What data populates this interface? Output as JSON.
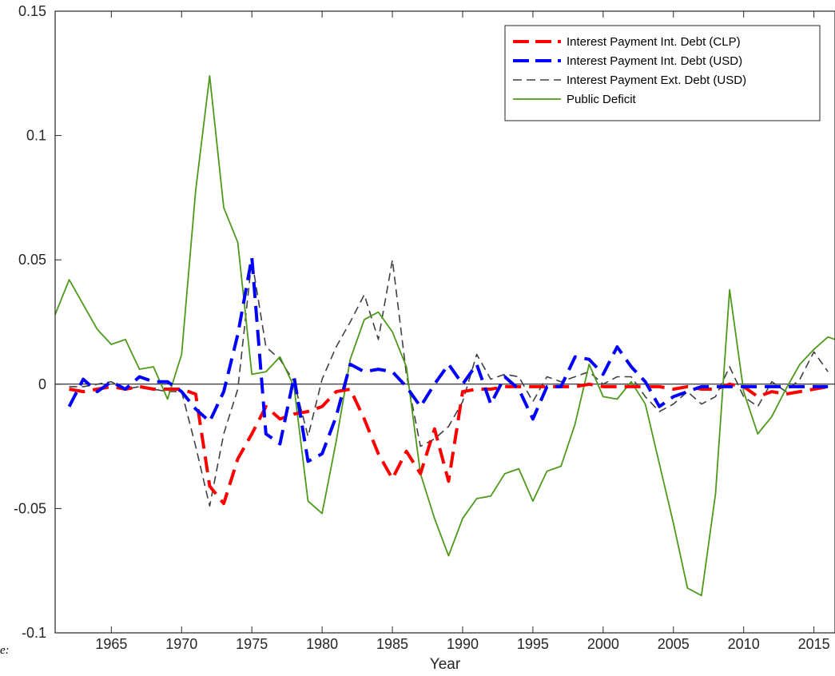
{
  "chart_data": {
    "type": "line",
    "xlabel": "Year",
    "ylabel": "",
    "title": "",
    "xlim": [
      1961,
      2016.5
    ],
    "ylim": [
      -0.1,
      0.15
    ],
    "xticks": [
      1965,
      1970,
      1975,
      1980,
      1985,
      1990,
      1995,
      2000,
      2005,
      2010,
      2015
    ],
    "yticks": [
      -0.1,
      -0.05,
      0,
      0.05,
      0.1,
      0.15
    ],
    "ytick_labels": [
      "-0.1",
      "-0.05",
      "0",
      "0.05",
      "0.1",
      "0.15"
    ],
    "grid": false,
    "zero_line": true,
    "legend_position": "top-right",
    "series": [
      {
        "name": "Interest Payment Int. Debt  (CLP)",
        "color": "#ff0000",
        "style": "dashed-thick",
        "x": [
          1962,
          1963,
          1964,
          1965,
          1966,
          1967,
          1968,
          1969,
          1970,
          1971,
          1972,
          1973,
          1974,
          1975,
          1976,
          1977,
          1978,
          1979,
          1980,
          1981,
          1982,
          1983,
          1984,
          1985,
          1986,
          1987,
          1988,
          1989,
          1990,
          1991,
          1992,
          1993,
          1994,
          1995,
          1996,
          1997,
          1998,
          1999,
          2000,
          2001,
          2002,
          2003,
          2004,
          2005,
          2006,
          2007,
          2008,
          2009,
          2010,
          2011,
          2012,
          2013,
          2014,
          2015,
          2016
        ],
        "y": [
          -0.002,
          -0.003,
          -0.002,
          -0.001,
          -0.002,
          -0.001,
          -0.002,
          -0.002,
          -0.002,
          -0.004,
          -0.041,
          -0.048,
          -0.03,
          -0.02,
          -0.009,
          -0.014,
          -0.012,
          -0.011,
          -0.009,
          -0.003,
          -0.002,
          -0.014,
          -0.028,
          -0.038,
          -0.027,
          -0.036,
          -0.018,
          -0.039,
          -0.003,
          -0.002,
          -0.002,
          -0.001,
          -0.001,
          -0.001,
          -0.001,
          -0.001,
          -0.001,
          0.0,
          -0.001,
          -0.001,
          -0.001,
          -0.001,
          -0.001,
          -0.002,
          -0.001,
          -0.002,
          -0.002,
          0.0,
          -0.001,
          -0.005,
          -0.003,
          -0.004,
          -0.003,
          -0.002,
          -0.001
        ]
      },
      {
        "name": "Interest Payment Int. Debt  (USD)",
        "color": "#0000ff",
        "style": "dashed-thick",
        "x": [
          1962,
          1963,
          1964,
          1965,
          1966,
          1967,
          1968,
          1969,
          1970,
          1971,
          1972,
          1973,
          1974,
          1975,
          1976,
          1977,
          1978,
          1979,
          1980,
          1981,
          1982,
          1983,
          1984,
          1985,
          1986,
          1987,
          1988,
          1989,
          1990,
          1991,
          1992,
          1993,
          1994,
          1995,
          1996,
          1997,
          1998,
          1999,
          2000,
          2001,
          2002,
          2003,
          2004,
          2005,
          2006,
          2007,
          2008,
          2009,
          2010,
          2011,
          2012,
          2013,
          2014,
          2015,
          2016
        ],
        "y": [
          -0.009,
          0.002,
          -0.003,
          0.001,
          -0.002,
          0.003,
          0.001,
          0.001,
          -0.003,
          -0.01,
          -0.015,
          -0.003,
          0.02,
          0.051,
          -0.02,
          -0.024,
          0.003,
          -0.031,
          -0.028,
          -0.013,
          0.008,
          0.005,
          0.006,
          0.005,
          -0.001,
          -0.009,
          0.0,
          0.008,
          0.0,
          0.008,
          -0.008,
          0.003,
          -0.002,
          -0.014,
          -0.001,
          -0.001,
          0.011,
          0.01,
          0.004,
          0.015,
          0.007,
          0.001,
          -0.009,
          -0.005,
          -0.003,
          -0.001,
          -0.001,
          -0.001,
          -0.001,
          -0.001,
          -0.001,
          -0.001,
          -0.001,
          -0.001,
          -0.001
        ]
      },
      {
        "name": "Interest Payment Ext. Debt (USD)",
        "color": "#404040",
        "style": "dashed-thin",
        "x": [
          1962,
          1963,
          1964,
          1965,
          1966,
          1967,
          1968,
          1969,
          1970,
          1971,
          1972,
          1973,
          1974,
          1975,
          1976,
          1977,
          1978,
          1979,
          1980,
          1981,
          1982,
          1983,
          1984,
          1985,
          1986,
          1987,
          1988,
          1989,
          1990,
          1991,
          1992,
          1993,
          1994,
          1995,
          1996,
          1997,
          1998,
          1999,
          2000,
          2001,
          2002,
          2003,
          2004,
          2005,
          2006,
          2007,
          2008,
          2009,
          2010,
          2011,
          2012,
          2013,
          2014,
          2015,
          2016
        ],
        "y": [
          -0.001,
          -0.001,
          0.0,
          0.001,
          -0.002,
          -0.001,
          -0.002,
          -0.003,
          -0.003,
          -0.025,
          -0.049,
          -0.02,
          -0.002,
          0.05,
          0.015,
          0.01,
          0.001,
          -0.021,
          0.002,
          0.015,
          0.025,
          0.036,
          0.018,
          0.05,
          0.004,
          -0.025,
          -0.022,
          -0.017,
          -0.007,
          0.012,
          0.002,
          0.004,
          0.003,
          -0.007,
          0.003,
          0.001,
          0.003,
          0.005,
          0.0,
          0.003,
          0.003,
          -0.005,
          -0.011,
          -0.008,
          -0.003,
          -0.008,
          -0.005,
          0.007,
          -0.005,
          -0.009,
          0.001,
          -0.003,
          0.002,
          0.013,
          0.005
        ]
      },
      {
        "name": "Public Deficit",
        "color": "#4d9a1a",
        "style": "solid",
        "x": [
          1961,
          1962,
          1963,
          1964,
          1965,
          1966,
          1967,
          1968,
          1969,
          1970,
          1971,
          1972,
          1973,
          1974,
          1975,
          1976,
          1977,
          1978,
          1979,
          1980,
          1981,
          1982,
          1983,
          1984,
          1985,
          1986,
          1987,
          1988,
          1989,
          1990,
          1991,
          1992,
          1993,
          1994,
          1995,
          1996,
          1997,
          1998,
          1999,
          2000,
          2001,
          2002,
          2003,
          2004,
          2005,
          2006,
          2007,
          2008,
          2009,
          2010,
          2011,
          2012,
          2013,
          2014,
          2015,
          2016,
          2016.5
        ],
        "y": [
          0.028,
          0.042,
          0.032,
          0.022,
          0.016,
          0.018,
          0.006,
          0.007,
          -0.006,
          0.012,
          0.078,
          0.124,
          0.071,
          0.057,
          0.004,
          0.005,
          0.011,
          -0.001,
          -0.047,
          -0.052,
          -0.023,
          0.01,
          0.026,
          0.029,
          0.021,
          0.007,
          -0.036,
          -0.054,
          -0.069,
          -0.054,
          -0.046,
          -0.045,
          -0.036,
          -0.034,
          -0.047,
          -0.035,
          -0.033,
          -0.016,
          0.008,
          -0.005,
          -0.006,
          0.001,
          -0.008,
          -0.032,
          -0.056,
          -0.082,
          -0.085,
          -0.044,
          0.038,
          -0.003,
          -0.02,
          -0.013,
          -0.002,
          0.008,
          0.014,
          0.019,
          0.018
        ]
      }
    ]
  },
  "note_text": "e:"
}
